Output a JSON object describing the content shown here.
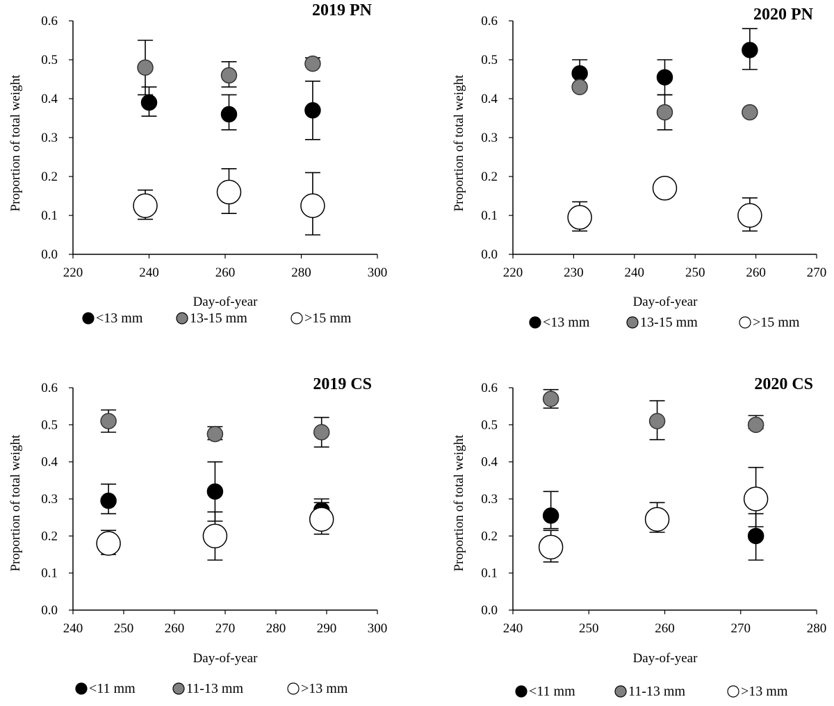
{
  "chart_data": [
    {
      "type": "scatter",
      "title": "2019 PN",
      "xlabel": "Day-of-year",
      "ylabel": "Proportion of total weight",
      "xlim": [
        220,
        300
      ],
      "ylim": [
        0,
        0.6
      ],
      "xticks": [
        220,
        240,
        260,
        280,
        300
      ],
      "yticks": [
        0.0,
        0.1,
        0.2,
        0.3,
        0.4,
        0.5,
        0.6
      ],
      "series": [
        {
          "name": "<13 mm",
          "color": "#000000",
          "x": [
            240,
            261,
            283
          ],
          "y": [
            0.39,
            0.36,
            0.37
          ],
          "err_low": [
            0.355,
            0.32,
            0.295
          ],
          "err_high": [
            0.43,
            0.41,
            0.445
          ]
        },
        {
          "name": "13-15 mm",
          "color": "#808080",
          "x": [
            239,
            261,
            283
          ],
          "y": [
            0.48,
            0.46,
            0.49
          ],
          "err_low": [
            0.41,
            0.43,
            0.485
          ],
          "err_high": [
            0.55,
            0.495,
            0.505
          ]
        },
        {
          "name": ">15 mm",
          "color": "#ffffff",
          "x": [
            239,
            261,
            283
          ],
          "y": [
            0.125,
            0.16,
            0.125
          ],
          "err_low": [
            0.09,
            0.105,
            0.05
          ],
          "err_high": [
            0.165,
            0.22,
            0.21
          ]
        }
      ]
    },
    {
      "type": "scatter",
      "title": "2020 PN",
      "xlabel": "Day-of-year",
      "ylabel": "Proportion of total weight",
      "xlim": [
        220,
        270
      ],
      "ylim": [
        0,
        0.6
      ],
      "xticks": [
        220,
        230,
        240,
        250,
        260,
        270
      ],
      "yticks": [
        0.0,
        0.1,
        0.2,
        0.3,
        0.4,
        0.5,
        0.6
      ],
      "series": [
        {
          "name": "<13 mm",
          "color": "#000000",
          "x": [
            231,
            245,
            259
          ],
          "y": [
            0.465,
            0.455,
            0.525
          ],
          "err_low": [
            0.43,
            0.41,
            0.475
          ],
          "err_high": [
            0.5,
            0.5,
            0.58
          ]
        },
        {
          "name": "13-15 mm",
          "color": "#808080",
          "x": [
            231,
            245,
            259
          ],
          "y": [
            0.43,
            0.365,
            0.365
          ],
          "err_low": [
            0.43,
            0.32,
            0.36
          ],
          "err_high": [
            0.43,
            0.41,
            0.37
          ]
        },
        {
          "name": ">15 mm",
          "color": "#ffffff",
          "x": [
            231,
            245,
            259
          ],
          "y": [
            0.095,
            0.17,
            0.1
          ],
          "err_low": [
            0.06,
            0.17,
            0.06
          ],
          "err_high": [
            0.135,
            0.17,
            0.145
          ]
        }
      ]
    },
    {
      "type": "scatter",
      "title": "2019 CS",
      "xlabel": "Day-of-year",
      "ylabel": "Proportion of total weight",
      "xlim": [
        240,
        300
      ],
      "ylim": [
        0,
        0.6
      ],
      "xticks": [
        240,
        250,
        260,
        270,
        280,
        290,
        300
      ],
      "yticks": [
        0.0,
        0.1,
        0.2,
        0.3,
        0.4,
        0.5,
        0.6
      ],
      "series": [
        {
          "name": "<11 mm",
          "color": "#000000",
          "x": [
            247,
            268,
            289
          ],
          "y": [
            0.295,
            0.32,
            0.27
          ],
          "err_low": [
            0.26,
            0.24,
            0.24
          ],
          "err_high": [
            0.34,
            0.4,
            0.3
          ]
        },
        {
          "name": "11-13 mm",
          "color": "#808080",
          "x": [
            247,
            268,
            289
          ],
          "y": [
            0.51,
            0.475,
            0.48
          ],
          "err_low": [
            0.48,
            0.46,
            0.44
          ],
          "err_high": [
            0.54,
            0.495,
            0.52
          ]
        },
        {
          "name": ">13 mm",
          "color": "#ffffff",
          "x": [
            247,
            268,
            289
          ],
          "y": [
            0.18,
            0.2,
            0.245
          ],
          "err_low": [
            0.15,
            0.135,
            0.205
          ],
          "err_high": [
            0.215,
            0.265,
            0.29
          ]
        }
      ]
    },
    {
      "type": "scatter",
      "title": "2020 CS",
      "xlabel": "Day-of-year",
      "ylabel": "Proportion of total weight",
      "xlim": [
        240,
        280
      ],
      "ylim": [
        0,
        0.6
      ],
      "xticks": [
        240,
        250,
        260,
        270,
        280
      ],
      "yticks": [
        0.0,
        0.1,
        0.2,
        0.3,
        0.4,
        0.5,
        0.6
      ],
      "series": [
        {
          "name": "<11 mm",
          "color": "#000000",
          "x": [
            245,
            259,
            272
          ],
          "y": [
            0.255,
            0.25,
            0.2
          ],
          "err_low": [
            0.22,
            0.25,
            0.135
          ],
          "err_high": [
            0.32,
            0.25,
            0.26
          ]
        },
        {
          "name": "11-13 mm",
          "color": "#808080",
          "x": [
            245,
            259,
            272
          ],
          "y": [
            0.57,
            0.51,
            0.5
          ],
          "err_low": [
            0.545,
            0.46,
            0.49
          ],
          "err_high": [
            0.595,
            0.565,
            0.525
          ]
        },
        {
          "name": ">13 mm",
          "color": "#ffffff",
          "x": [
            245,
            259,
            272
          ],
          "y": [
            0.17,
            0.245,
            0.3
          ],
          "err_low": [
            0.13,
            0.21,
            0.225
          ],
          "err_high": [
            0.215,
            0.29,
            0.385
          ]
        }
      ]
    }
  ]
}
